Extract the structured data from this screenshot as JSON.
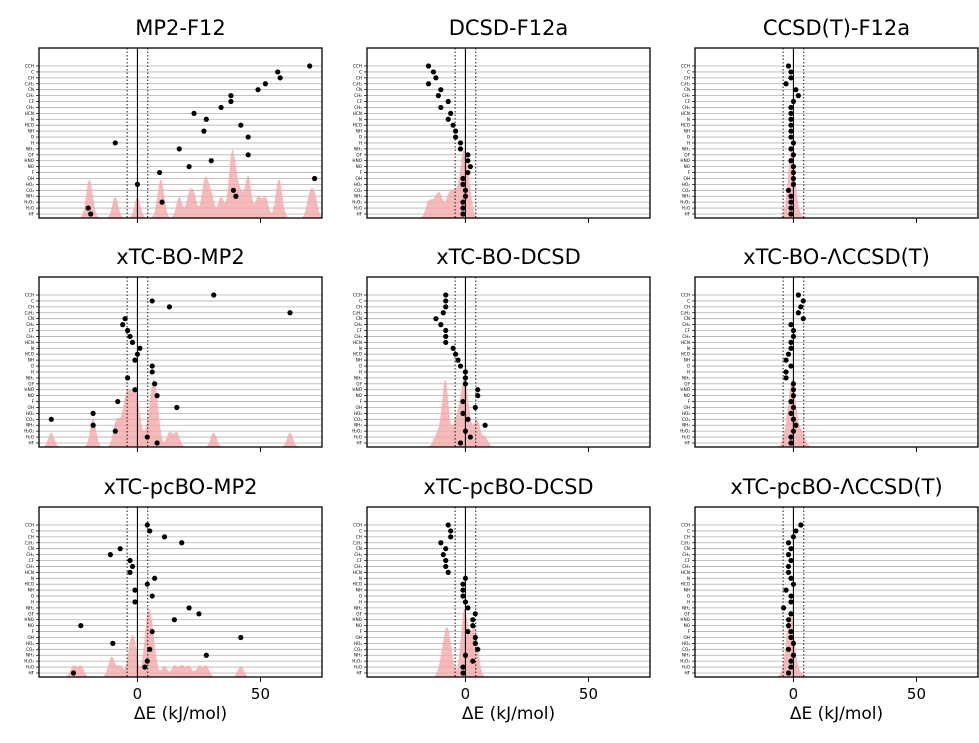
{
  "chart_data": {
    "type": "scatter",
    "xlabel": "ΔE (kJ/mol)",
    "xlim": [
      -40,
      75
    ],
    "xticks": [
      0,
      50
    ],
    "reference_lines": {
      "solid": 0,
      "dotted": [
        -4.2,
        4.2
      ]
    },
    "grid": "horizontal",
    "colors": {
      "point": "#000000",
      "density": "#f4a6a6",
      "grid": "#b0b0b0"
    },
    "molecules": [
      "CCH",
      "C",
      "CH",
      "C₂H₂",
      "CN",
      "CH₂",
      "CF",
      "CH₃",
      "HCN",
      "N",
      "HCO",
      "NH",
      "O",
      "H",
      "NH₂",
      "OF",
      "HNO",
      "NO",
      "F",
      "OH",
      "HO₂",
      "CO₂",
      "NH₃",
      "H₂O₂",
      "H₂O",
      "HF"
    ],
    "panels": [
      {
        "title": "MP2-F12",
        "values": [
          70,
          57,
          58,
          52,
          49,
          38,
          38,
          34,
          23,
          28,
          42,
          27,
          45,
          -9,
          17,
          45,
          30,
          21,
          9,
          72,
          0,
          39,
          40,
          10,
          -20,
          -19
        ]
      },
      {
        "title": "DCSD-F12a",
        "values": [
          -15,
          -13,
          -12,
          -15,
          -10,
          -11,
          -7,
          -10,
          -6,
          -7,
          -5,
          -4,
          -4,
          -2,
          -2,
          1,
          1,
          2,
          1,
          -1,
          -1,
          0,
          0,
          -1,
          -1,
          -1
        ]
      },
      {
        "title": "CCSD(T)-F12a",
        "values": [
          -2,
          -1,
          -1,
          -3,
          1,
          2,
          0,
          -1,
          -1,
          -1,
          -1,
          -1,
          -1,
          0,
          -1,
          0,
          -1,
          0,
          0,
          0,
          0,
          -2,
          -1,
          -1,
          -1,
          -1
        ]
      },
      {
        "title": "xTC-BO-MP2",
        "values": [
          31,
          6,
          13,
          62,
          -5,
          -6,
          -4,
          -3,
          -2,
          1,
          0,
          -1,
          6,
          6,
          -4,
          7,
          -1,
          8,
          -8,
          16,
          -18,
          -35,
          -18,
          -9,
          4,
          8
        ]
      },
      {
        "title": "xTC-BO-DCSD",
        "values": [
          -8,
          -8,
          -8,
          -9,
          -12,
          -10,
          -8,
          -8,
          -8,
          -5,
          -4,
          -3,
          -2,
          0,
          0,
          0,
          5,
          5,
          -1,
          4,
          -1,
          1,
          8,
          0,
          2,
          -2
        ]
      },
      {
        "title": "xTC-BO-ΛCCSD(T)",
        "values": [
          2,
          4,
          3,
          2,
          4,
          -1,
          0,
          0,
          -1,
          -1,
          -2,
          -3,
          -1,
          -3,
          -3,
          0,
          0,
          0,
          -1,
          0,
          -1,
          0,
          1,
          0,
          -1,
          -1
        ]
      },
      {
        "title": "xTC-pcBO-MP2",
        "values": [
          4,
          5,
          11,
          18,
          -7,
          -11,
          -3,
          -2,
          -3,
          7,
          4,
          -1,
          6,
          -1,
          21,
          25,
          15,
          -23,
          6,
          42,
          -10,
          5,
          28,
          4,
          3,
          -26
        ]
      },
      {
        "title": "xTC-pcBO-DCSD",
        "values": [
          -7,
          -6,
          -6,
          -10,
          -8,
          -9,
          -8,
          -8,
          -7,
          0,
          -1,
          -1,
          -1,
          0,
          1,
          4,
          3,
          3,
          1,
          4,
          4,
          5,
          0,
          3,
          -1,
          -1
        ]
      },
      {
        "title": "xTC-pcBO-ΛCCSD(T)",
        "values": [
          3,
          1,
          0,
          -2,
          -1,
          -2,
          -1,
          -2,
          -2,
          -1,
          0,
          -3,
          -1,
          -1,
          -4,
          -1,
          -2,
          -2,
          -1,
          -1,
          0,
          -2,
          0,
          -1,
          -1,
          -2
        ]
      }
    ]
  }
}
